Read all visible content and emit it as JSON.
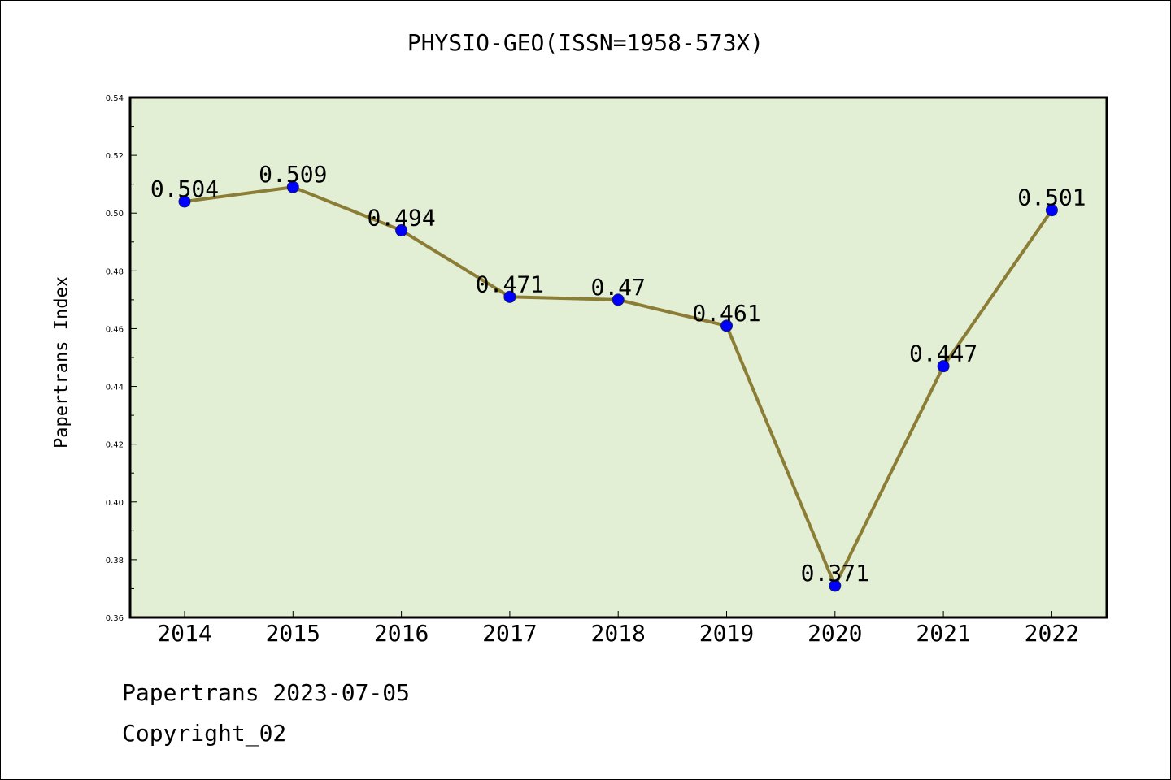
{
  "chart_data": {
    "type": "line",
    "title": "PHYSIO-GEO(ISSN=1958-573X)",
    "xlabel": "",
    "ylabel": "Papertrans Index",
    "categories": [
      "2014",
      "2015",
      "2016",
      "2017",
      "2018",
      "2019",
      "2020",
      "2021",
      "2022"
    ],
    "values": [
      0.504,
      0.509,
      0.494,
      0.471,
      0.47,
      0.461,
      0.371,
      0.447,
      0.501
    ],
    "data_labels": [
      "0.504",
      "0.509",
      "0.494",
      "0.471",
      "0.47",
      "0.461",
      "0.371",
      "0.447",
      "0.501"
    ],
    "ylim": [
      0.36,
      0.54
    ],
    "yticks": [
      "0.36",
      "0.38",
      "0.40",
      "0.42",
      "0.44",
      "0.46",
      "0.48",
      "0.50",
      "0.52",
      "0.54"
    ],
    "grid": false,
    "colors": {
      "plot_background": "#e2efd5",
      "line": "#8b7d35",
      "marker": "#0000ff"
    }
  },
  "footer": {
    "date_line": "Papertrans 2023-07-05",
    "copyright": "Copyright_02"
  }
}
